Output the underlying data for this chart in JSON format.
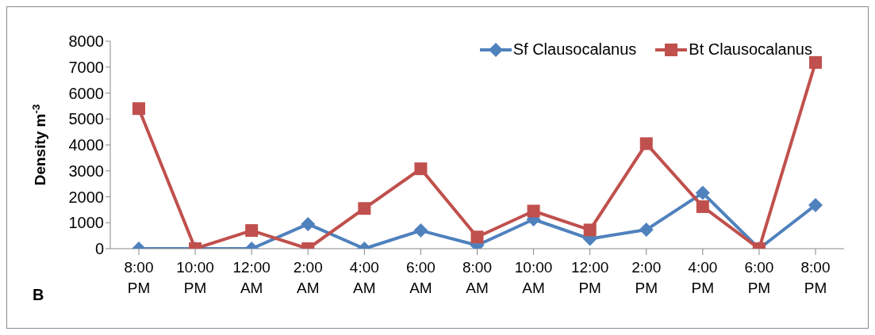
{
  "chart_data": {
    "type": "line",
    "ylabel": "Density m$^{-3}$",
    "categories": [
      "8:00 PM",
      "10:00 PM",
      "12:00 AM",
      "2:00 AM",
      "4:00 AM",
      "6:00 AM",
      "8:00 AM",
      "10:00 AM",
      "12:00 PM",
      "2:00 PM",
      "4:00 PM",
      "6:00 PM",
      "8:00 PM"
    ],
    "series": [
      {
        "name": "Sf Clausocalanus",
        "color": "#4f81bd",
        "marker": "diamond",
        "values": [
          0,
          0,
          0,
          950,
          0,
          700,
          130,
          1130,
          380,
          730,
          2150,
          0,
          1680
        ]
      },
      {
        "name": "Bt Clausocalanus",
        "color": "#c0504d",
        "marker": "square",
        "values": [
          5400,
          0,
          700,
          0,
          1550,
          3080,
          450,
          1450,
          720,
          4050,
          1620,
          0,
          7180
        ]
      }
    ],
    "ylim": [
      0,
      8000
    ],
    "yticks": [
      0,
      1000,
      2000,
      3000,
      4000,
      5000,
      6000,
      7000,
      8000
    ],
    "grid": false,
    "legend": "top right",
    "annotations": [
      "B"
    ]
  }
}
